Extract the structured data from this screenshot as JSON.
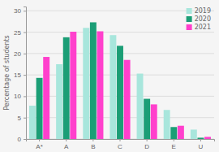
{
  "chart_data": {
    "type": "bar",
    "categories": [
      "A*",
      "A",
      "B",
      "C",
      "D",
      "E",
      "U"
    ],
    "series": [
      {
        "name": "2019",
        "color": "#a8e6dc",
        "values": [
          7.8,
          17.5,
          26.0,
          24.3,
          15.3,
          6.8,
          2.2
        ]
      },
      {
        "name": "2020",
        "color": "#1b9e76",
        "values": [
          14.3,
          23.8,
          27.3,
          21.8,
          9.4,
          2.8,
          0.3
        ]
      },
      {
        "name": "2021",
        "color": "#ff40cc",
        "values": [
          19.2,
          25.1,
          25.2,
          18.5,
          8.1,
          3.1,
          0.5
        ]
      }
    ],
    "ylabel": "Percentage of students",
    "ylim": [
      0,
      31
    ],
    "yticks": [
      0,
      5,
      10,
      15,
      20,
      25,
      30
    ],
    "grid": true,
    "legend": "upper right"
  }
}
